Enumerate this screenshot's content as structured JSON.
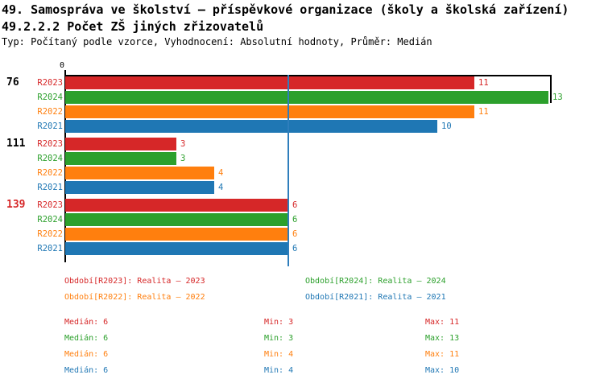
{
  "title": {
    "line1": "49. Samospráva ve školství – příspěvkové organizace (školy a školská zařízení)",
    "line2": "49.2.2.2 Počet ZŠ jiných zřizovatelů",
    "line3": "Typ: Počítaný podle vzorce, Vyhodnocení: Absolutní hodnoty, Průměr: Medián"
  },
  "chart": {
    "zero_label": "0",
    "axis_max": 13,
    "median_value": 6,
    "groups": [
      {
        "label": "76",
        "label_color": "#000000",
        "bars": [
          {
            "series": "R2023",
            "value": 11,
            "color": "#d62728"
          },
          {
            "series": "R2024",
            "value": 13,
            "color": "#2ca02c"
          },
          {
            "series": "R2022",
            "value": 11,
            "color": "#ff7f0e"
          },
          {
            "series": "R2021",
            "value": 10,
            "color": "#1f77b4"
          }
        ]
      },
      {
        "label": "111",
        "label_color": "#000000",
        "bars": [
          {
            "series": "R2023",
            "value": 3,
            "color": "#d62728"
          },
          {
            "series": "R2024",
            "value": 3,
            "color": "#2ca02c"
          },
          {
            "series": "R2022",
            "value": 4,
            "color": "#ff7f0e"
          },
          {
            "series": "R2021",
            "value": 4,
            "color": "#1f77b4"
          }
        ]
      },
      {
        "label": "139",
        "label_color": "#d62728",
        "bars": [
          {
            "series": "R2023",
            "value": 6,
            "color": "#d62728"
          },
          {
            "series": "R2024",
            "value": 6,
            "color": "#2ca02c"
          },
          {
            "series": "R2022",
            "value": 6,
            "color": "#ff7f0e"
          },
          {
            "series": "R2021",
            "value": 6,
            "color": "#1f77b4"
          }
        ]
      }
    ]
  },
  "legend": {
    "items": [
      {
        "label": "Období[R2023]: Realita – 2023",
        "color": "#d62728",
        "col": 0,
        "row": 0
      },
      {
        "label": "Období[R2024]: Realita – 2024",
        "color": "#2ca02c",
        "col": 1,
        "row": 0
      },
      {
        "label": "Období[R2022]: Realita – 2022",
        "color": "#ff7f0e",
        "col": 0,
        "row": 1
      },
      {
        "label": "Období[R2021]: Realita – 2021",
        "color": "#1f77b4",
        "col": 1,
        "row": 1
      }
    ]
  },
  "stats": {
    "rows": [
      {
        "median": "Medián: 6",
        "min": "Min: 3",
        "max": "Max: 11",
        "color": "#d62728"
      },
      {
        "median": "Medián: 6",
        "min": "Min: 3",
        "max": "Max: 13",
        "color": "#2ca02c"
      },
      {
        "median": "Medián: 6",
        "min": "Min: 4",
        "max": "Max: 11",
        "color": "#ff7f0e"
      },
      {
        "median": "Medián: 6",
        "min": "Min: 4",
        "max": "Max: 10",
        "color": "#1f77b4"
      }
    ]
  },
  "chart_data": {
    "type": "bar",
    "orientation": "horizontal",
    "title": "49.2.2.2 Počet ZŠ jiných zřizovatelů",
    "categories": [
      "76",
      "111",
      "139"
    ],
    "series": [
      {
        "name": "R2023",
        "values": [
          11,
          3,
          6
        ]
      },
      {
        "name": "R2024",
        "values": [
          13,
          3,
          6
        ]
      },
      {
        "name": "R2022",
        "values": [
          11,
          4,
          6
        ]
      },
      {
        "name": "R2021",
        "values": [
          10,
          4,
          6
        ]
      }
    ],
    "xlim": [
      0,
      13
    ],
    "grid": false,
    "median_reference_line": 6,
    "bar_value_labels": true,
    "legend_position": "bottom",
    "stats": {
      "R2023": {
        "median": 6,
        "min": 3,
        "max": 11
      },
      "R2024": {
        "median": 6,
        "min": 3,
        "max": 13
      },
      "R2022": {
        "median": 6,
        "min": 4,
        "max": 11
      },
      "R2021": {
        "median": 6,
        "min": 4,
        "max": 10
      }
    }
  }
}
